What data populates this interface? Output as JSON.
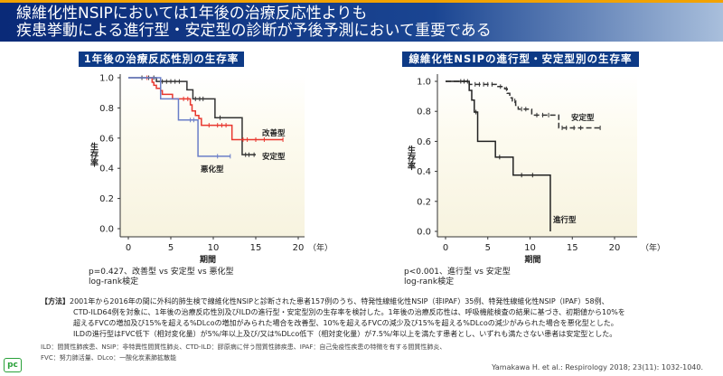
{
  "header": {
    "line1": "線維化性NSIPにおいては1年後の治療反応性よりも",
    "line2": "疾患挙動による進行型・安定型の診断が予後予測において重要である"
  },
  "chart_data": [
    {
      "type": "line",
      "step": true,
      "title": "1年後の治療反応性別の生存率",
      "xlabel": "期間",
      "ylabel": "生存率",
      "x_unit": "（年）",
      "xlim": [
        0,
        20
      ],
      "ylim": [
        0,
        1
      ],
      "xticks": [
        "0",
        "5",
        "10",
        "15",
        "20"
      ],
      "yticks": [
        "0.0",
        "0.2",
        "0.4",
        "0.6",
        "0.8",
        "1.0"
      ],
      "series": [
        {
          "name": "改善型",
          "color": "#333333",
          "dash": false,
          "points": [
            [
              0,
              1
            ],
            [
              3.3,
              0.975
            ],
            [
              6.9,
              0.92
            ],
            [
              7.6,
              0.86
            ],
            [
              10.2,
              0.735
            ],
            [
              13.4,
              0.49
            ],
            [
              15,
              0.49
            ]
          ],
          "censor": [
            1.6,
            2.4,
            3,
            4,
            4.5,
            5,
            5.5,
            6,
            7.9,
            8.4,
            8.8,
            10.8,
            13.8,
            14.2,
            14.8
          ]
        },
        {
          "name": "安定型",
          "color": "#e8372e",
          "dash": false,
          "points": [
            [
              2.6,
              1
            ],
            [
              2.8,
              0.97
            ],
            [
              3,
              0.95
            ],
            [
              3.3,
              0.93
            ],
            [
              3.8,
              0.915
            ],
            [
              4,
              0.89
            ],
            [
              5.2,
              0.86
            ],
            [
              7.3,
              0.82
            ],
            [
              7.5,
              0.78
            ],
            [
              7.9,
              0.75
            ],
            [
              8.3,
              0.73
            ],
            [
              8.6,
              0.685
            ],
            [
              12.2,
              0.59
            ],
            [
              18.2,
              0.59
            ]
          ],
          "censor": [
            2.2,
            6.5,
            7,
            9.5,
            10.5,
            11,
            11.5,
            13.5,
            14,
            15,
            16,
            18.2
          ]
        },
        {
          "name": "悪化型",
          "color": "#6a7ec8",
          "dash": false,
          "points": [
            [
              0,
              1
            ],
            [
              3.8,
              0.86
            ],
            [
              5.9,
              0.72
            ],
            [
              8.2,
              0.48
            ],
            [
              12,
              0.48
            ]
          ],
          "censor": [
            7.3,
            7.7,
            10.5,
            12
          ]
        }
      ],
      "annotation": "p=0.427、改善型 vs 安定型 vs 悪化型",
      "test": "log-rank検定"
    },
    {
      "type": "line",
      "step": true,
      "title": "線維化性NSIPの進行型・安定型別の生存率",
      "xlabel": "期間",
      "ylabel": "生存率",
      "x_unit": "（年）",
      "xlim": [
        0,
        20
      ],
      "ylim": [
        0,
        1
      ],
      "xticks": [
        "0",
        "5",
        "10",
        "15",
        "20"
      ],
      "yticks": [
        "0.0",
        "0.2",
        "0.4",
        "0.6",
        "0.8",
        "1.0"
      ],
      "series": [
        {
          "name": "安定型",
          "color": "#333333",
          "dash": true,
          "points": [
            [
              0,
              1
            ],
            [
              2.8,
              0.98
            ],
            [
              6,
              0.965
            ],
            [
              7,
              0.95
            ],
            [
              7.3,
              0.92
            ],
            [
              7.6,
              0.89
            ],
            [
              7.9,
              0.87
            ],
            [
              8.3,
              0.84
            ],
            [
              8.6,
              0.815
            ],
            [
              10.2,
              0.775
            ],
            [
              13.4,
              0.69
            ],
            [
              18.3,
              0.69
            ]
          ],
          "censor": [
            1.8,
            2.2,
            2.6,
            3.5,
            4,
            4.5,
            5,
            5.5,
            6.5,
            7.2,
            8.2,
            9,
            9.5,
            10.8,
            11.5,
            12.2,
            13.8,
            14.3,
            15.2,
            16,
            18.3
          ]
        },
        {
          "name": "進行型",
          "color": "#222222",
          "dash": false,
          "points": [
            [
              0,
              1
            ],
            [
              2.8,
              0.94
            ],
            [
              3.1,
              0.875
            ],
            [
              3.4,
              0.795
            ],
            [
              3.8,
              0.6
            ],
            [
              5.9,
              0.495
            ],
            [
              8,
              0.375
            ],
            [
              12.4,
              0.375
            ],
            [
              12.4,
              0
            ]
          ],
          "censor": [
            3.6,
            6.4,
            9,
            10.3
          ]
        }
      ],
      "annotation": "p<0.001、進行型 vs 安定型",
      "test": "log-rank検定"
    }
  ],
  "method": {
    "tag": "【方法】",
    "lines": [
      "2001年から2016年の間に外科的肺生検で線維化性NSIPと診断された患者157例のうち、特発性線維化性NSIP（非IPAF）35例、特発性線維化性NSIP（IPAF）58例、",
      "CTD-ILD64例を対象に、1年後の治療反応性別及びILDの進行型・安定型別の生存率を検討した。1年後の治療反応性は、呼吸機能検査の結果に基づき、初期値から10%を",
      "超えるFVCの増加及び15%を超える%DLcoの増加がみられた場合を改善型、10%を超えるFVCの減少及び15%を超える%DLcoの減少がみられた場合を悪化型とした。",
      "ILDの進行型はFVC低下（相対変化量）が5%/年以上及び/又は%DLco低下（相対変化量）が7.5%/年以上を満たす患者とし、いずれも満たさない患者は安定型とした。"
    ]
  },
  "abbr": [
    "ILD：間質性肺疾患、NSIP：非特異性間質性肺炎、CTD-ILD：膠原病に伴う間質性肺疾患、IPAF：自己免疫性疾患の特徴を有する間質性肺炎、",
    "FVC：努力肺活量、DLco：一酸化炭素肺拡散能"
  ],
  "citation": "Yamakawa H. et al.: Respirology 2018; 23(11): 1032-1040.",
  "logo": "pc"
}
